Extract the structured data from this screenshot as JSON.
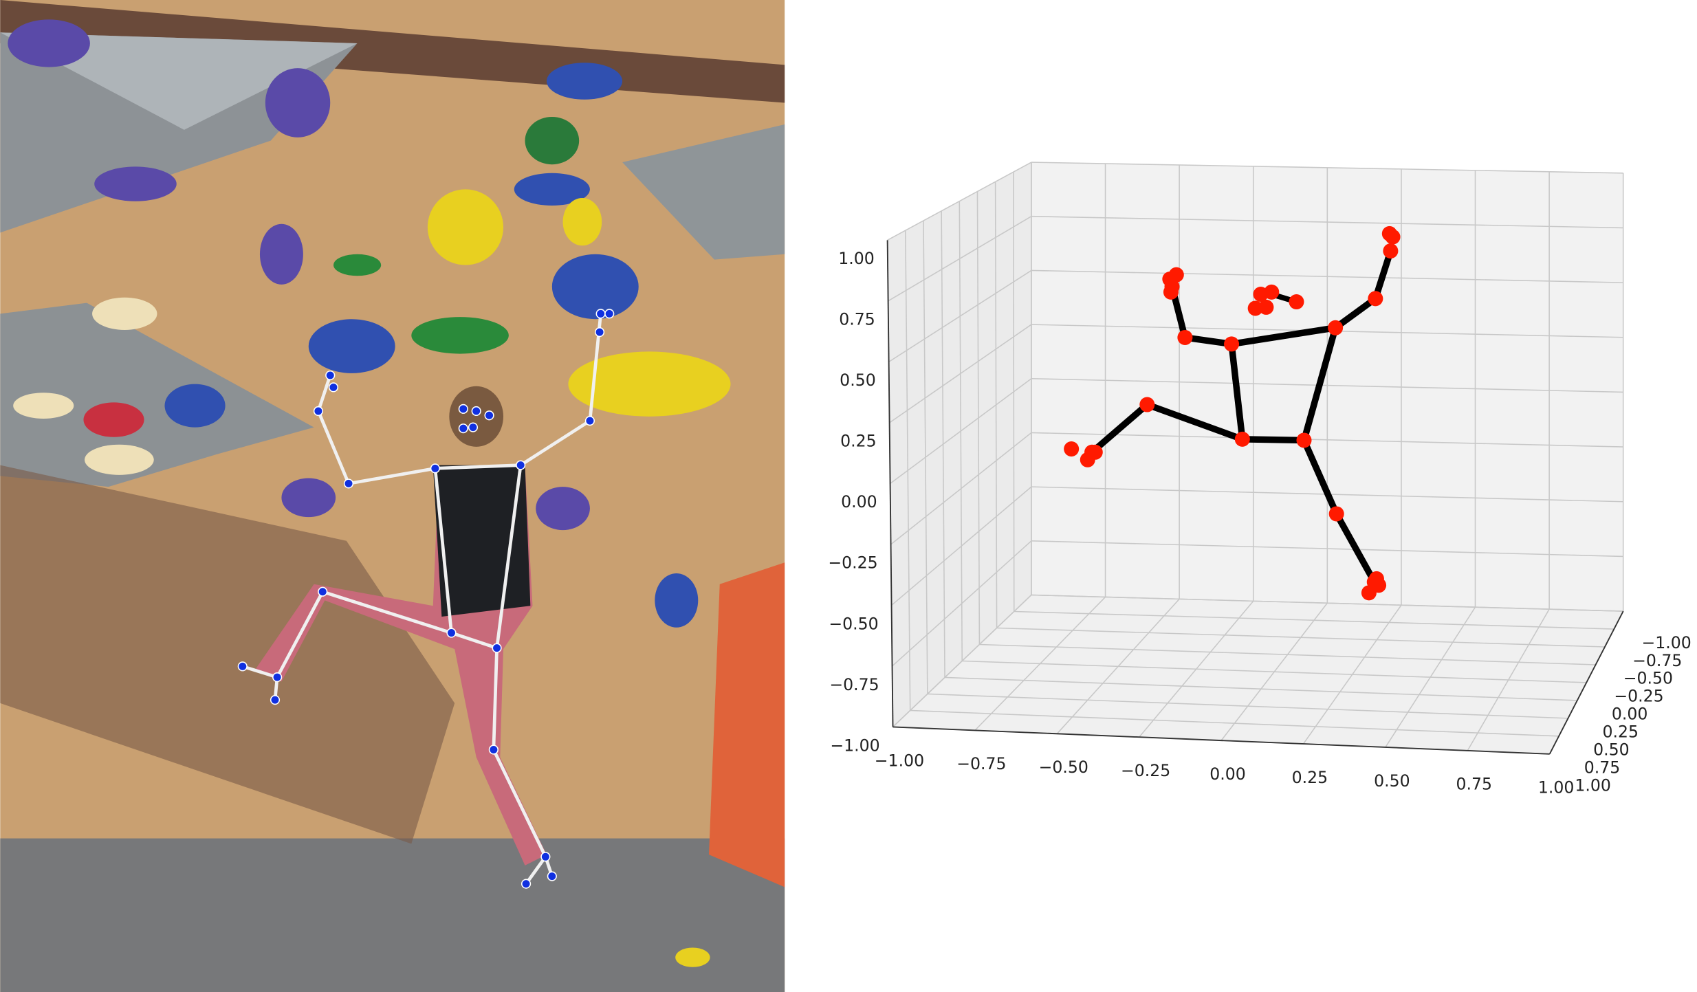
{
  "plot3d": {
    "z_tick_labels": [
      "1.00",
      "0.75",
      "0.50",
      "0.25",
      "0.00",
      "−0.25",
      "−0.50",
      "−0.75",
      "−1.00"
    ],
    "x_tick_labels": [
      "−1.00",
      "−0.75",
      "−0.50",
      "−0.25",
      "0.00",
      "0.25",
      "0.50",
      "0.75",
      "1.00"
    ],
    "y_tick_labels": [
      "−1.00",
      "−0.75",
      "−0.50",
      "−0.25",
      "0.00",
      "0.25",
      "0.50",
      "0.75",
      "1.00"
    ]
  }
}
